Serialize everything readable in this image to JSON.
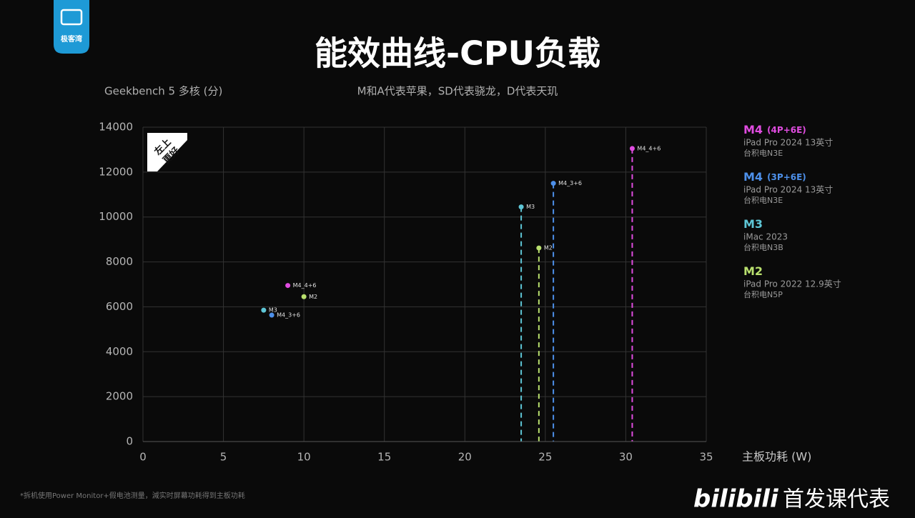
{
  "chart_data": {
    "type": "scatter",
    "title": "能效曲线-CPU负载",
    "subtitle": "M和A代表苹果，SD代表骁龙，D代表天玑",
    "y_label": "Geekbench 5 多核 (分)",
    "x_label": "主板功耗 (W)",
    "annotation": [
      "左上",
      "更好"
    ],
    "footnote": "*拆机使用Power Monitor+假电池测量，減实时屏幕功耗得到主板功耗",
    "logo": "极客湾",
    "watermark": [
      "bilibili",
      "首发课代表"
    ],
    "xlim": [
      0,
      35
    ],
    "xticks": [
      0,
      5,
      10,
      15,
      20,
      25,
      30,
      35
    ],
    "ylim": [
      0,
      14000
    ],
    "yticks": [
      0,
      2000,
      4000,
      6000,
      8000,
      10000,
      12000,
      14000
    ],
    "grid": true,
    "series": [
      {
        "name": "M4",
        "spec": "(4P+6E)",
        "device": "iPad Pro 2024 13英寸",
        "node": "台积电N3E",
        "color": "#e04ce0",
        "x": [
          9.0,
          30.4
        ],
        "values": [
          6950,
          13050
        ],
        "labels": [
          "M4_4+6",
          "M4_4+6"
        ],
        "drop_lines": [
          false,
          true
        ]
      },
      {
        "name": "M4",
        "spec": "(3P+6E)",
        "device": "iPad Pro 2024 13英寸",
        "node": "台积电N3E",
        "color": "#4d90ea",
        "x": [
          8.0,
          25.5
        ],
        "values": [
          5630,
          11500
        ],
        "labels": [
          "M4_3+6",
          "M4_3+6"
        ],
        "drop_lines": [
          false,
          true
        ]
      },
      {
        "name": "M3",
        "device": "iMac 2023",
        "node": "台积电N3B",
        "color": "#5ec6d6",
        "x": [
          7.5,
          23.5
        ],
        "values": [
          5850,
          10450
        ],
        "labels": [
          "M3",
          "M3"
        ],
        "drop_lines": [
          false,
          true
        ]
      },
      {
        "name": "M2",
        "device": "iPad Pro 2022 12.9英寸",
        "node": "台积电N5P",
        "color": "#b9e06e",
        "x": [
          10.0,
          24.6
        ],
        "values": [
          6450,
          8620
        ],
        "labels": [
          "M2",
          "M2"
        ],
        "drop_lines": [
          false,
          true
        ]
      }
    ]
  }
}
